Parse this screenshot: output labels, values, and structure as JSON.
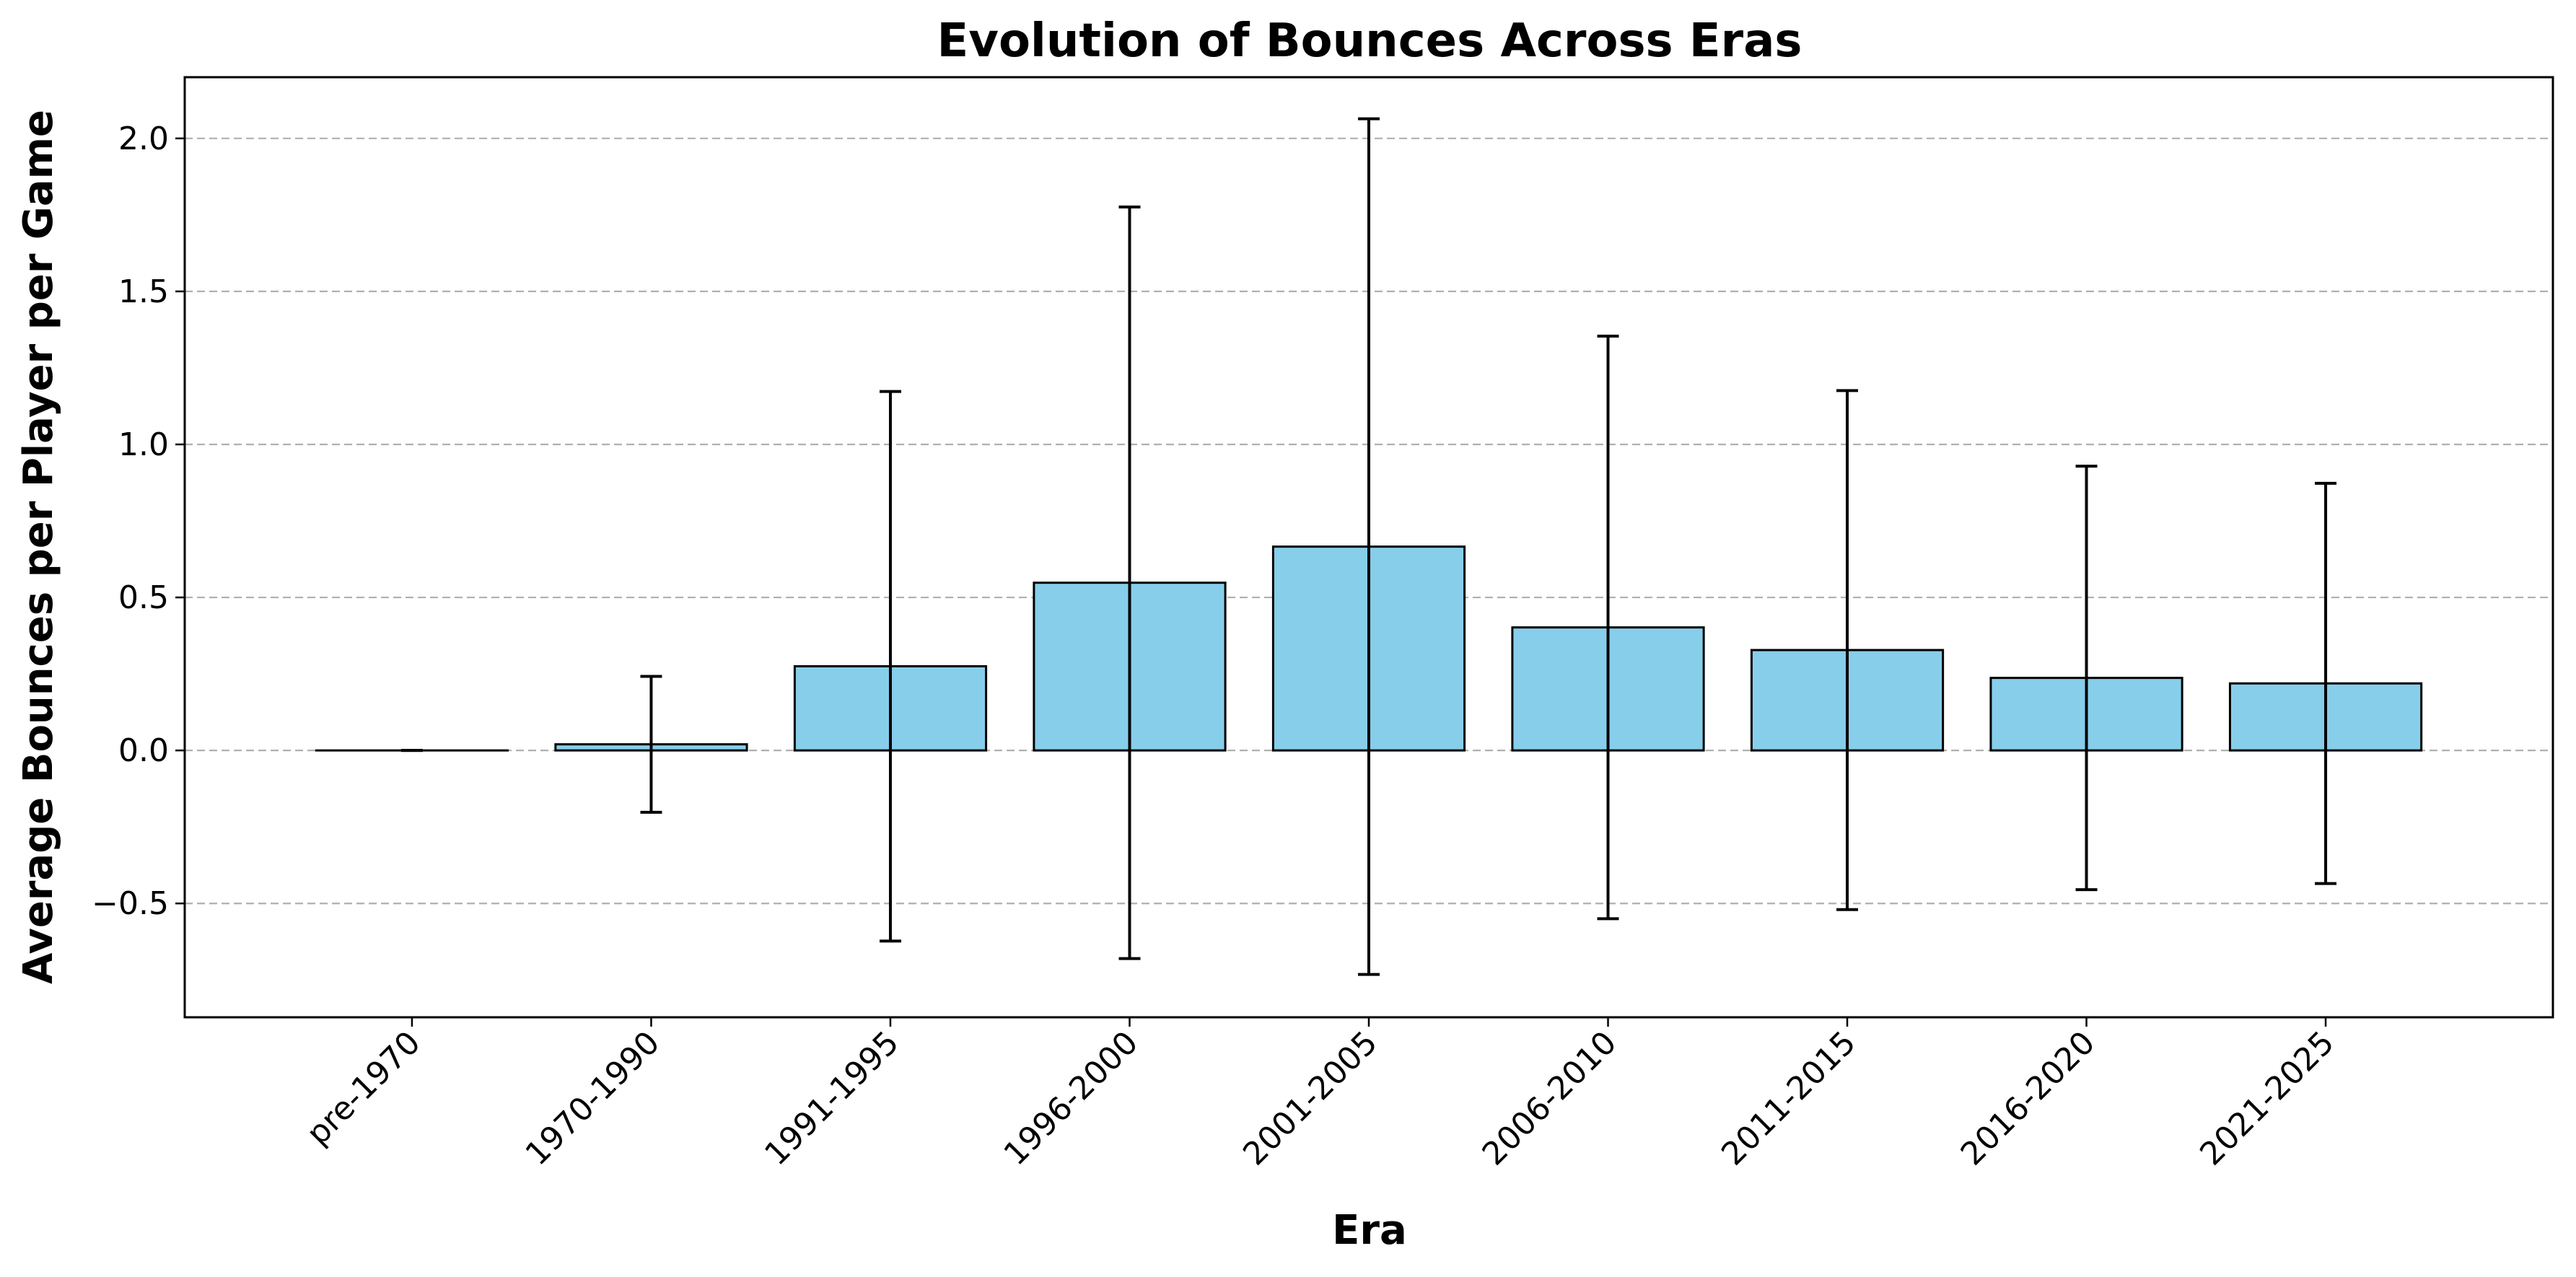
{
  "chart_data": {
    "type": "bar",
    "title": "Evolution of Bounces Across Eras",
    "xlabel": "Era",
    "ylabel": "Average Bounces per Player per Game",
    "categories": [
      "pre-1970",
      "1970-1990",
      "1991-1995",
      "1996-2000",
      "2001-2005",
      "2006-2010",
      "2011-2015",
      "2016-2020",
      "2021-2025"
    ],
    "values": [
      0.0,
      0.02,
      0.275,
      0.548,
      0.666,
      0.402,
      0.328,
      0.237,
      0.219
    ],
    "errors": [
      0.0,
      0.222,
      0.898,
      1.228,
      1.398,
      0.952,
      0.848,
      0.692,
      0.654
    ],
    "yticks": [
      -0.5,
      0.0,
      0.5,
      1.0,
      1.5,
      2.0
    ],
    "ytick_labels": [
      "−0.5",
      "0.0",
      "0.5",
      "1.0",
      "1.5",
      "2.0"
    ],
    "ylim": [
      -0.872,
      2.2
    ],
    "grid": "y-dashed",
    "legend": "none",
    "bar_color": "#87CEEB",
    "edge_color": "#000000",
    "grid_color": "#b0b0b0"
  }
}
